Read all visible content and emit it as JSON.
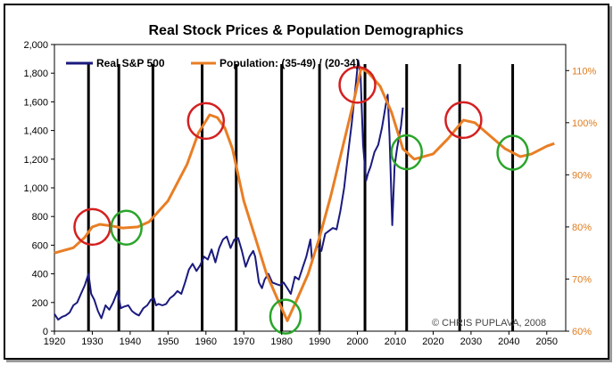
{
  "chart_data": {
    "type": "line",
    "title": "Real Stock Prices & Population Demographics",
    "copyright": "© CHRIS PUPLAVA, 2008",
    "x_ticks": [
      1920,
      1930,
      1940,
      1950,
      1960,
      1970,
      1980,
      1990,
      2000,
      2010,
      2020,
      2030,
      2040,
      2050
    ],
    "xlim": [
      1920,
      2055
    ],
    "y_left": {
      "lim": [
        0,
        2000
      ],
      "ticks": [
        0,
        200,
        400,
        600,
        800,
        1000,
        1200,
        1400,
        1600,
        1800,
        2000
      ],
      "labels": [
        "0",
        "200",
        "400",
        "600",
        "800",
        "1,000",
        "1,200",
        "1,400",
        "1,600",
        "1,800",
        "2,000"
      ]
    },
    "y_right": {
      "lim": [
        60,
        115
      ],
      "ticks": [
        60,
        70,
        80,
        90,
        100,
        110
      ],
      "labels": [
        "60%",
        "70%",
        "80%",
        "90%",
        "100%",
        "110%"
      ]
    },
    "colors": {
      "sp500": "#1a1a7e",
      "population": "#e97e24",
      "peak_circle": "#d42020",
      "trough_circle": "#2aa52a",
      "vline": "#000000"
    },
    "series": [
      {
        "name": "Real S&P 500",
        "axis": "left",
        "x": [
          1920,
          1921,
          1922,
          1923,
          1924,
          1925,
          1926,
          1927,
          1928,
          1929,
          1929.7,
          1930.5,
          1931.5,
          1932.4,
          1933.5,
          1934.5,
          1935.5,
          1936.7,
          1937.5,
          1938.3,
          1939.5,
          1940.5,
          1941.5,
          1942.3,
          1943.5,
          1944.5,
          1945.5,
          1946.3,
          1946.8,
          1947.5,
          1948.5,
          1949.5,
          1950.5,
          1951.5,
          1952.5,
          1953.5,
          1954.5,
          1955.5,
          1956.5,
          1957.5,
          1958.5,
          1959.5,
          1960.5,
          1961.5,
          1962.5,
          1963.5,
          1964.5,
          1965.5,
          1966.5,
          1967.5,
          1968.5,
          1969.5,
          1970.5,
          1971.5,
          1972.5,
          1973,
          1974,
          1974.8,
          1975.5,
          1976.5,
          1977.5,
          1978.5,
          1979.5,
          1980.5,
          1981.5,
          1982.4,
          1983.5,
          1984.5,
          1985.5,
          1986.5,
          1987.6,
          1988,
          1989.5,
          1990.5,
          1991.5,
          1992.5,
          1993.5,
          1994.5,
          1995.5,
          1996.5,
          1997.5,
          1998.5,
          1999.5,
          2000.2,
          2000.8,
          2001.5,
          2002.3,
          2002.8,
          2003.5,
          2004.5,
          2005.5,
          2006.5,
          2007.5,
          2008,
          2008.5,
          2009.2,
          2009.8,
          2010.5,
          2011.5,
          2012
        ],
        "values": [
          120,
          80,
          100,
          110,
          130,
          180,
          200,
          260,
          320,
          400,
          260,
          220,
          140,
          90,
          180,
          150,
          200,
          280,
          160,
          170,
          180,
          140,
          120,
          110,
          160,
          180,
          220,
          230,
          180,
          190,
          180,
          190,
          230,
          250,
          280,
          260,
          340,
          430,
          470,
          420,
          460,
          520,
          500,
          570,
          480,
          580,
          640,
          660,
          580,
          640,
          650,
          560,
          450,
          520,
          560,
          520,
          340,
          300,
          360,
          400,
          340,
          330,
          320,
          340,
          300,
          260,
          380,
          360,
          440,
          520,
          640,
          500,
          600,
          560,
          680,
          700,
          720,
          710,
          840,
          1000,
          1230,
          1450,
          1700,
          1890,
          1800,
          1300,
          1050,
          1100,
          1150,
          1250,
          1300,
          1420,
          1580,
          1650,
          1350,
          740,
          1150,
          1280,
          1430,
          1560
        ]
      },
      {
        "name": "Population: (35-49) / (20-34)",
        "axis": "right",
        "x": [
          1920,
          1925,
          1928,
          1930,
          1932,
          1935,
          1938,
          1942,
          1945,
          1950,
          1955,
          1958,
          1961,
          1963,
          1965,
          1967,
          1970,
          1973,
          1976,
          1979,
          1981.5,
          1984,
          1987,
          1990,
          1993,
          1996,
          1999,
          2001,
          2003,
          2006,
          2009,
          2012,
          2015,
          2020,
          2024,
          2028,
          2031,
          2035,
          2039,
          2043,
          2046,
          2050,
          2052
        ],
        "values": [
          75,
          76,
          78,
          80,
          80.5,
          80.2,
          79.8,
          80,
          81,
          85,
          92,
          98,
          101.5,
          101,
          99,
          95,
          85,
          78,
          71,
          66,
          62,
          66,
          71,
          78,
          86,
          95,
          104,
          110.5,
          109.5,
          107,
          102,
          95,
          93,
          94,
          97,
          100.5,
          100,
          97.5,
          95,
          93.5,
          94,
          95.5,
          96
        ]
      }
    ],
    "vertical_lines": [
      1929,
      1937,
      1946,
      1959,
      1968,
      1980,
      1990,
      2002,
      2013,
      2027,
      2041
    ],
    "peak_circles": [
      1930,
      1960,
      2000,
      2028
    ],
    "trough_circles": [
      1939,
      1981,
      2013,
      2041
    ]
  }
}
